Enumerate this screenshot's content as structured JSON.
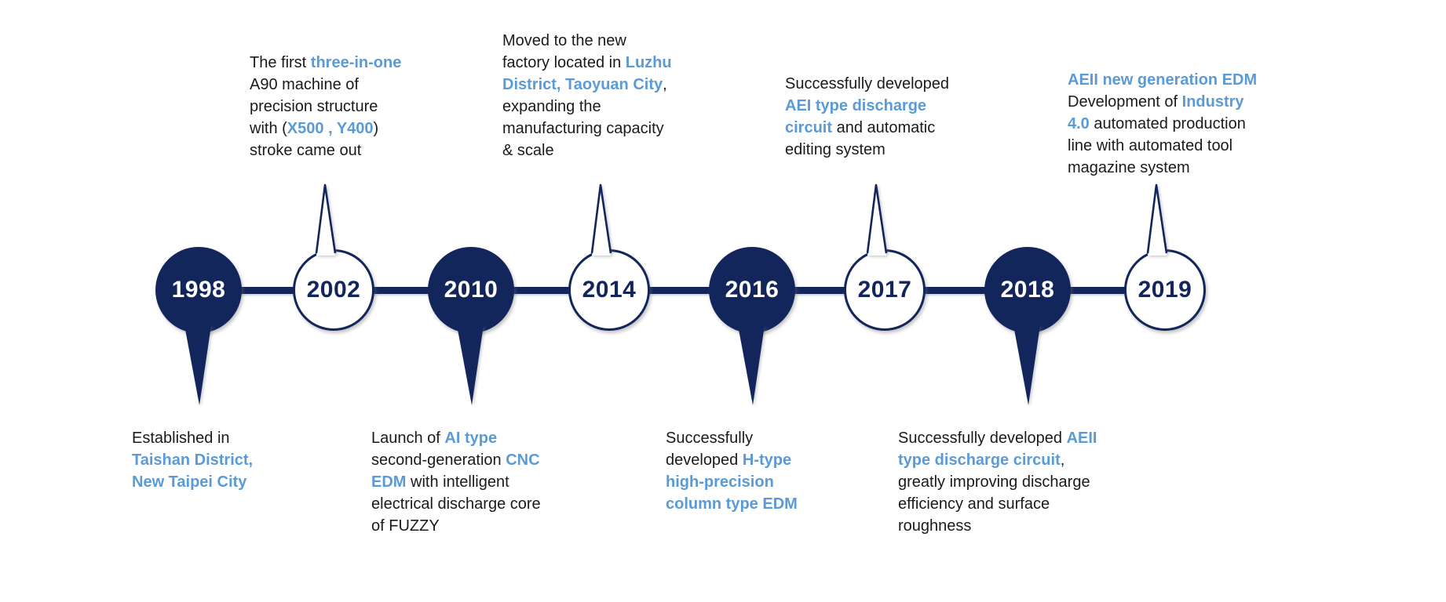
{
  "colors": {
    "navy": "#13265C",
    "accent_blue": "#5B9BD5",
    "text": "#1A1A1A",
    "background": "#FFFFFF"
  },
  "timeline": {
    "milestones": [
      {
        "year": "1998",
        "style": "dark",
        "side": "bottom",
        "lines": [
          [
            {
              "t": "Established in"
            }
          ],
          [
            {
              "t": "Taishan District,",
              "hl": true
            }
          ],
          [
            {
              "t": "New Taipei City",
              "hl": true
            }
          ]
        ]
      },
      {
        "year": "2002",
        "style": "light",
        "side": "top",
        "lines": [
          [
            {
              "t": "The first "
            },
            {
              "t": "three-in-one",
              "hl": true
            }
          ],
          [
            {
              "t": "A90 machine of"
            }
          ],
          [
            {
              "t": "precision structure"
            }
          ],
          [
            {
              "t": "with ("
            },
            {
              "t": "X500 , Y400",
              "hl": true
            },
            {
              "t": ")"
            }
          ],
          [
            {
              "t": "stroke came out"
            }
          ]
        ]
      },
      {
        "year": "2010",
        "style": "dark",
        "side": "bottom",
        "lines": [
          [
            {
              "t": "Launch of "
            },
            {
              "t": "AI type",
              "hl": true
            }
          ],
          [
            {
              "t": "second-generation "
            },
            {
              "t": "CNC",
              "hl": true
            }
          ],
          [
            {
              "t": "EDM",
              "hl": true
            },
            {
              "t": " with intelligent"
            }
          ],
          [
            {
              "t": "electrical discharge core"
            }
          ],
          [
            {
              "t": "of FUZZY"
            }
          ]
        ]
      },
      {
        "year": "2014",
        "style": "light",
        "side": "top",
        "lines": [
          [
            {
              "t": "Moved to the new"
            }
          ],
          [
            {
              "t": "factory located in "
            },
            {
              "t": "Luzhu",
              "hl": true
            }
          ],
          [
            {
              "t": "District, Taoyuan City",
              "hl": true
            },
            {
              "t": ","
            }
          ],
          [
            {
              "t": "expanding the"
            }
          ],
          [
            {
              "t": "manufacturing capacity"
            }
          ],
          [
            {
              "t": "& scale"
            }
          ]
        ]
      },
      {
        "year": "2016",
        "style": "dark",
        "side": "bottom",
        "lines": [
          [
            {
              "t": "Successfully"
            }
          ],
          [
            {
              "t": "developed "
            },
            {
              "t": "H-type",
              "hl": true
            }
          ],
          [
            {
              "t": "high-precision",
              "hl": true
            }
          ],
          [
            {
              "t": "column type EDM",
              "hl": true
            }
          ]
        ]
      },
      {
        "year": "2017",
        "style": "light",
        "side": "top",
        "lines": [
          [
            {
              "t": "Successfully developed"
            }
          ],
          [
            {
              "t": "AEI type discharge",
              "hl": true
            }
          ],
          [
            {
              "t": "circuit",
              "hl": true
            },
            {
              "t": " and automatic"
            }
          ],
          [
            {
              "t": "editing system"
            }
          ]
        ]
      },
      {
        "year": "2018",
        "style": "dark",
        "side": "bottom",
        "lines": [
          [
            {
              "t": "Successfully developed "
            },
            {
              "t": "AEII",
              "hl": true
            }
          ],
          [
            {
              "t": "type discharge circuit",
              "hl": true
            },
            {
              "t": ","
            }
          ],
          [
            {
              "t": "greatly improving discharge"
            }
          ],
          [
            {
              "t": "efficiency and surface"
            }
          ],
          [
            {
              "t": "roughness"
            }
          ]
        ]
      },
      {
        "year": "2019",
        "style": "light",
        "side": "top",
        "lines": [
          [
            {
              "t": "AEII new generation EDM",
              "hl": true
            }
          ],
          [
            {
              "t": "Development of "
            },
            {
              "t": "Industry",
              "hl": true
            }
          ],
          [
            {
              "t": "4.0",
              "hl": true
            },
            {
              "t": " automated production"
            }
          ],
          [
            {
              "t": "line with automated tool"
            }
          ],
          [
            {
              "t": "magazine system"
            }
          ]
        ]
      }
    ]
  }
}
